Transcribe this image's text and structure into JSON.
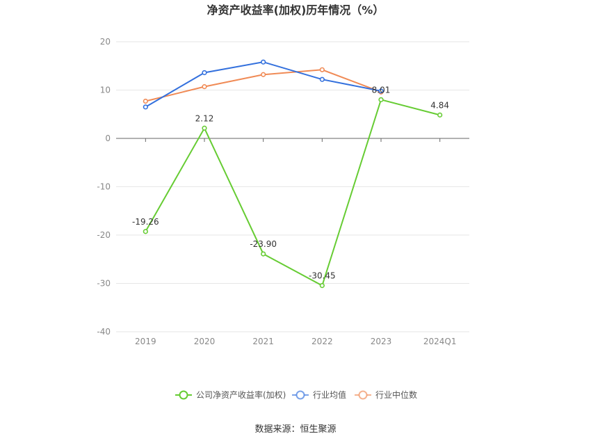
{
  "chart_data": {
    "type": "line",
    "title": "净资产收益率(加权)历年情况（%）",
    "categories": [
      "2019",
      "2020",
      "2021",
      "2022",
      "2023",
      "2024Q1"
    ],
    "ylim": [
      -40,
      20
    ],
    "yticks": [
      20,
      10,
      0,
      -10,
      -20,
      -30,
      -40
    ],
    "grid": true,
    "legend_position": "bottom",
    "series": [
      {
        "name": "公司净资产收益率(加权)",
        "color": "#66cc33",
        "values": [
          -19.26,
          2.12,
          -23.9,
          -30.45,
          8.01,
          4.84
        ],
        "labels": [
          "-19.26",
          "2.12",
          "-23.90",
          "-30.45",
          "8.01",
          "4.84"
        ]
      },
      {
        "name": "行业均值",
        "color": "#3370dd",
        "values": [
          6.5,
          13.6,
          15.8,
          12.2,
          9.8,
          null
        ]
      },
      {
        "name": "行业中位数",
        "color": "#f08a55",
        "values": [
          7.7,
          10.7,
          13.2,
          14.2,
          9.6,
          null
        ]
      }
    ]
  },
  "source": "数据来源：恒生聚源"
}
